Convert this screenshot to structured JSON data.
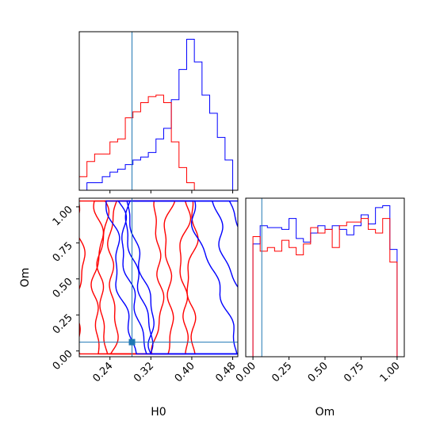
{
  "colors": {
    "series_a": "#ff0000",
    "series_b": "#0000ff",
    "truth": "#1f77b4",
    "axes": "#000000"
  },
  "truth_values": {
    "H0": 0.2831,
    "Om": 0.0614
  },
  "chart_data": [
    {
      "type": "histogram",
      "panel": "H0-marginal",
      "xlim": [
        0.18,
        0.49
      ],
      "xticks": [
        "0.24",
        "0.32",
        "0.40",
        "0.48"
      ],
      "tick_values": [
        0.24,
        0.32,
        0.4,
        0.48
      ],
      "xlabel": "",
      "y_axis_labels": "none",
      "bin_edges": [
        0.18,
        0.195,
        0.21,
        0.225,
        0.24,
        0.255,
        0.27,
        0.285,
        0.3,
        0.315,
        0.33,
        0.345,
        0.36,
        0.375,
        0.39,
        0.405,
        0.42,
        0.435,
        0.45,
        0.465,
        0.48
      ],
      "series": [
        {
          "color_key": "series_b",
          "counts": [
            0,
            5,
            5,
            9,
            12,
            14,
            17,
            20,
            22,
            25,
            34,
            41,
            60,
            80,
            100,
            85,
            63,
            51,
            35,
            20
          ]
        },
        {
          "color_key": "series_a",
          "counts": [
            9,
            19,
            24,
            24,
            32,
            34,
            48,
            52,
            58,
            62,
            63,
            58,
            32,
            15,
            5,
            0,
            0,
            0,
            0,
            0
          ]
        }
      ]
    },
    {
      "type": "contour",
      "panel": "H0-Om-joint",
      "xlim": [
        0.18,
        0.49
      ],
      "ylim": [
        -0.04,
        1.06
      ],
      "xlabel": "H0",
      "ylabel": "Om",
      "xticks": [
        "0.24",
        "0.32",
        "0.40",
        "0.48"
      ],
      "xtick_values": [
        0.24,
        0.32,
        0.4,
        0.48
      ],
      "yticks": [
        "0.00",
        "0.25",
        "0.50",
        "0.75",
        "1.00"
      ],
      "ytick_values": [
        0.0,
        0.25,
        0.5,
        0.75,
        1.0
      ],
      "series": [
        {
          "color_key": "series_a",
          "description_free": true,
          "centers_x": [
            0.29,
            0.29,
            0.3,
            0.29
          ],
          "spreads_x": [
            0.045,
            0.065,
            0.085,
            0.11
          ]
        },
        {
          "color_key": "series_b",
          "centers_x": [
            0.375,
            0.39,
            0.4,
            0.41
          ],
          "spreads_x": [
            0.07,
            0.095,
            0.12,
            0.15
          ]
        }
      ]
    },
    {
      "type": "histogram",
      "panel": "Om-marginal",
      "xlim": [
        -0.05,
        1.05
      ],
      "xticks": [
        "0.00",
        "0.25",
        "0.50",
        "0.75",
        "1.00"
      ],
      "tick_values": [
        0.0,
        0.25,
        0.5,
        0.75,
        1.0
      ],
      "xlabel": "Om",
      "y_axis_labels": "none",
      "bin_edges": [
        0.0,
        0.05,
        0.1,
        0.15,
        0.2,
        0.25,
        0.3,
        0.35,
        0.4,
        0.45,
        0.5,
        0.55,
        0.6,
        0.65,
        0.7,
        0.75,
        0.8,
        0.85,
        0.9,
        0.95,
        1.0
      ],
      "series": [
        {
          "color_key": "series_b",
          "counts": [
            62,
            72,
            71,
            71,
            70,
            76,
            65,
            63,
            68,
            72,
            70,
            72,
            70,
            67,
            72,
            78,
            73,
            82,
            83,
            59
          ]
        },
        {
          "color_key": "series_a",
          "counts": [
            66,
            58,
            60,
            58,
            64,
            60,
            56,
            62,
            71,
            68,
            70,
            60,
            72,
            74,
            74,
            76,
            70,
            68,
            76,
            52
          ]
        }
      ]
    }
  ]
}
